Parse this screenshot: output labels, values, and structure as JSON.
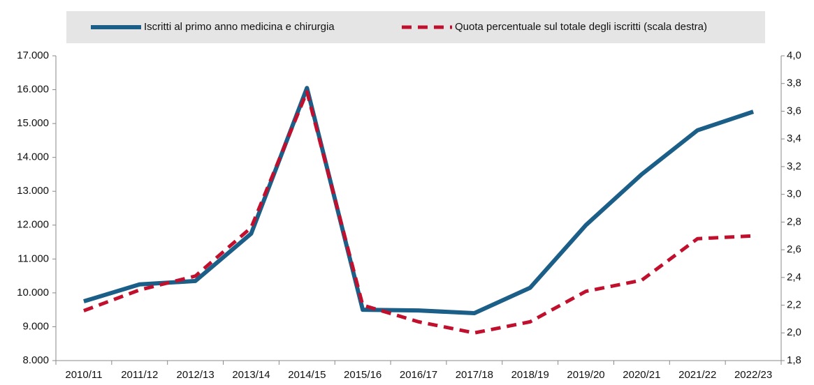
{
  "chart_data": {
    "type": "line",
    "categories": [
      "2010/11",
      "2011/12",
      "2012/13",
      "2013/14",
      "2014/15",
      "2015/16",
      "2016/17",
      "2017/18",
      "2018/19",
      "2019/20",
      "2020/21",
      "2021/22",
      "2022/23"
    ],
    "series": [
      {
        "name": "Iscritti al primo anno medicina e chirurgia",
        "color": "#1b5e87",
        "dash": false,
        "values": [
          9750,
          10250,
          10350,
          11750,
          16050,
          9500,
          9480,
          9400,
          10150,
          12000,
          13500,
          14800,
          15350
        ]
      },
      {
        "name": "Quota percentuale sul totale degli iscritti (scala destra)",
        "color": "#c0102e",
        "dash": true,
        "axis": "y2",
        "values": [
          2.16,
          2.31,
          2.41,
          2.76,
          3.74,
          2.2,
          2.08,
          2.0,
          2.08,
          2.3,
          2.38,
          2.68,
          2.7
        ]
      }
    ],
    "ylim": [
      8000,
      17000
    ],
    "yticks": [
      {
        "value": 8000,
        "label": "8.000"
      },
      {
        "value": 9000,
        "label": "9.000"
      },
      {
        "value": 10000,
        "label": "10.000"
      },
      {
        "value": 11000,
        "label": "11.000"
      },
      {
        "value": 12000,
        "label": "12.000"
      },
      {
        "value": 13000,
        "label": "13.000"
      },
      {
        "value": 14000,
        "label": "14.000"
      },
      {
        "value": 15000,
        "label": "15.000"
      },
      {
        "value": 16000,
        "label": "16.000"
      },
      {
        "value": 17000,
        "label": "17.000"
      }
    ],
    "y2lim": [
      1.8,
      4.0
    ],
    "y2ticks": [
      {
        "value": 1.8,
        "label": "1,8"
      },
      {
        "value": 2.0,
        "label": "2,0"
      },
      {
        "value": 2.2,
        "label": "2,2"
      },
      {
        "value": 2.4,
        "label": "2,4"
      },
      {
        "value": 2.6,
        "label": "2,6"
      },
      {
        "value": 2.8,
        "label": "2,8"
      },
      {
        "value": 3.0,
        "label": "3,0"
      },
      {
        "value": 3.2,
        "label": "3,2"
      },
      {
        "value": 3.4,
        "label": "3,4"
      },
      {
        "value": 3.6,
        "label": "3,6"
      },
      {
        "value": 3.8,
        "label": "3,8"
      },
      {
        "value": 4.0,
        "label": "4,0"
      }
    ],
    "grid": false,
    "legend": "top"
  }
}
